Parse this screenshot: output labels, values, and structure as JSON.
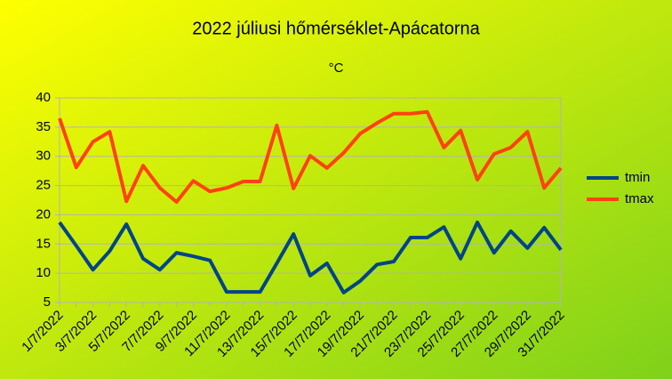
{
  "chart_data": {
    "type": "line",
    "title": "2022 júliusi hőmérséklet-Apácatorna",
    "subtitle": "°C",
    "categories": [
      "1/7/2022",
      null,
      "3/7/2022",
      null,
      "5/7/2022",
      null,
      "7/7/2022",
      null,
      "9/7/2022",
      null,
      "11/7/2022",
      null,
      "13/7/2022",
      null,
      "15/7/2022",
      null,
      "17/7/2022",
      null,
      "19/7/2022",
      null,
      "21/7/2022",
      null,
      "23/7/2022",
      null,
      "25/7/2022",
      null,
      "27/7/2022",
      null,
      "29/7/2022",
      null,
      "31/7/2022"
    ],
    "series": [
      {
        "name": "tmin",
        "color": "#004586",
        "values": [
          18.7,
          14.7,
          10.6,
          13.8,
          18.4,
          12.5,
          10.6,
          13.5,
          12.9,
          12.2,
          6.8,
          6.8,
          6.8,
          11.7,
          16.7,
          9.6,
          11.7,
          6.7,
          8.7,
          11.5,
          12.0,
          16.1,
          16.1,
          17.9,
          12.5,
          18.7,
          13.5,
          17.2,
          14.3,
          17.8,
          14.0
        ]
      },
      {
        "name": "tmax",
        "color": "#ff420e",
        "values": [
          36.5,
          28.1,
          32.5,
          34.2,
          22.3,
          28.4,
          24.6,
          22.2,
          25.8,
          24.0,
          24.6,
          25.7,
          25.7,
          35.3,
          24.5,
          30.1,
          28.0,
          30.6,
          33.9,
          35.7,
          37.3,
          37.3,
          37.6,
          31.5,
          34.4,
          26.0,
          30.4,
          31.5,
          34.2,
          24.6,
          28.0
        ]
      }
    ],
    "ylim": [
      5,
      40
    ],
    "yticks": [
      5,
      10,
      15,
      20,
      25,
      30,
      35,
      40
    ],
    "grid": true,
    "legend": "right"
  }
}
